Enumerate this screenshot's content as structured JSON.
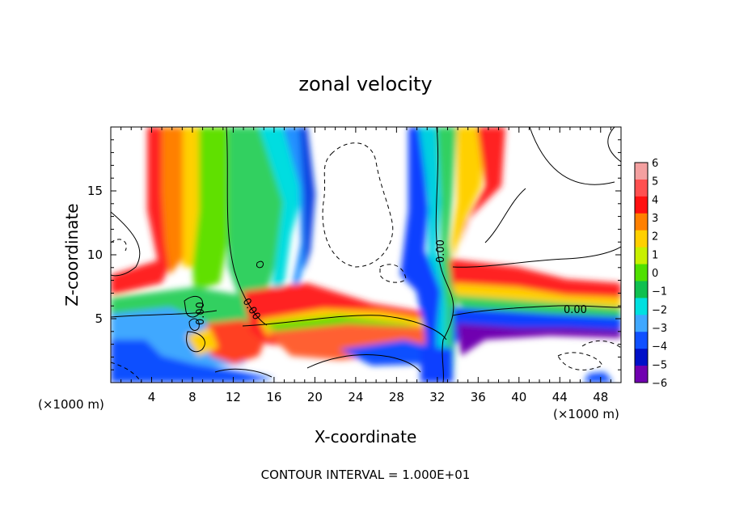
{
  "chart_data": {
    "type": "heatmap",
    "title": "zonal velocity",
    "xlabel": "X-coordinate",
    "ylabel": "Z-coordinate",
    "x_unit": "(×1000 m)",
    "x_range": [
      0,
      50
    ],
    "z_range": [
      0,
      20
    ],
    "x_ticks": [
      4,
      8,
      12,
      16,
      20,
      24,
      28,
      32,
      36,
      40,
      44,
      48
    ],
    "z_ticks": [
      5,
      10,
      15
    ],
    "footer": "CONTOUR INTERVAL = 1.000E+01",
    "contour_labels": [
      "0.00",
      "0.00",
      "0.00",
      "0.00"
    ],
    "colorbar": {
      "levels": [
        6,
        5,
        4,
        3,
        2,
        1,
        0,
        -1,
        -2,
        -3,
        -4,
        -5,
        -6
      ],
      "colors": [
        "#f4a0a0",
        "#ff5050",
        "#ff1010",
        "#ff8000",
        "#ffd000",
        "#c8f000",
        "#50e000",
        "#10c050",
        "#00e0e0",
        "#40a8ff",
        "#1050ff",
        "#0010c8",
        "#7000b0"
      ]
    }
  }
}
